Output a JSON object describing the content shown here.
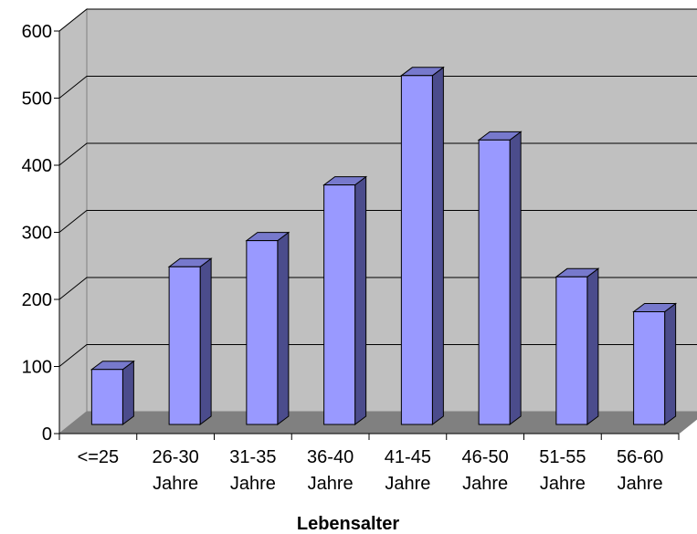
{
  "chart_data": {
    "type": "bar",
    "categories": [
      [
        "<=25"
      ],
      [
        "26-30",
        "Jahre"
      ],
      [
        "31-35",
        "Jahre"
      ],
      [
        "36-40",
        "Jahre"
      ],
      [
        "41-45",
        "Jahre"
      ],
      [
        "46-50",
        "Jahre"
      ],
      [
        "51-55",
        "Jahre"
      ],
      [
        "56-60",
        "Jahre"
      ]
    ],
    "values": [
      82,
      235,
      274,
      357,
      520,
      424,
      220,
      168
    ],
    "xlabel": "Lebensalter",
    "ylabel": "",
    "ylim": [
      0,
      600
    ],
    "yticks": [
      "0",
      "100",
      "200",
      "300",
      "400",
      "500",
      "600"
    ],
    "grid": true,
    "legend": "none",
    "colors": {
      "bar_front": "#9999ff",
      "bar_side": "#4b4c8c",
      "bar_top": "#7779cc",
      "wall": "#c0c0c0",
      "floor": "#808080",
      "gridline": "#000000"
    }
  }
}
